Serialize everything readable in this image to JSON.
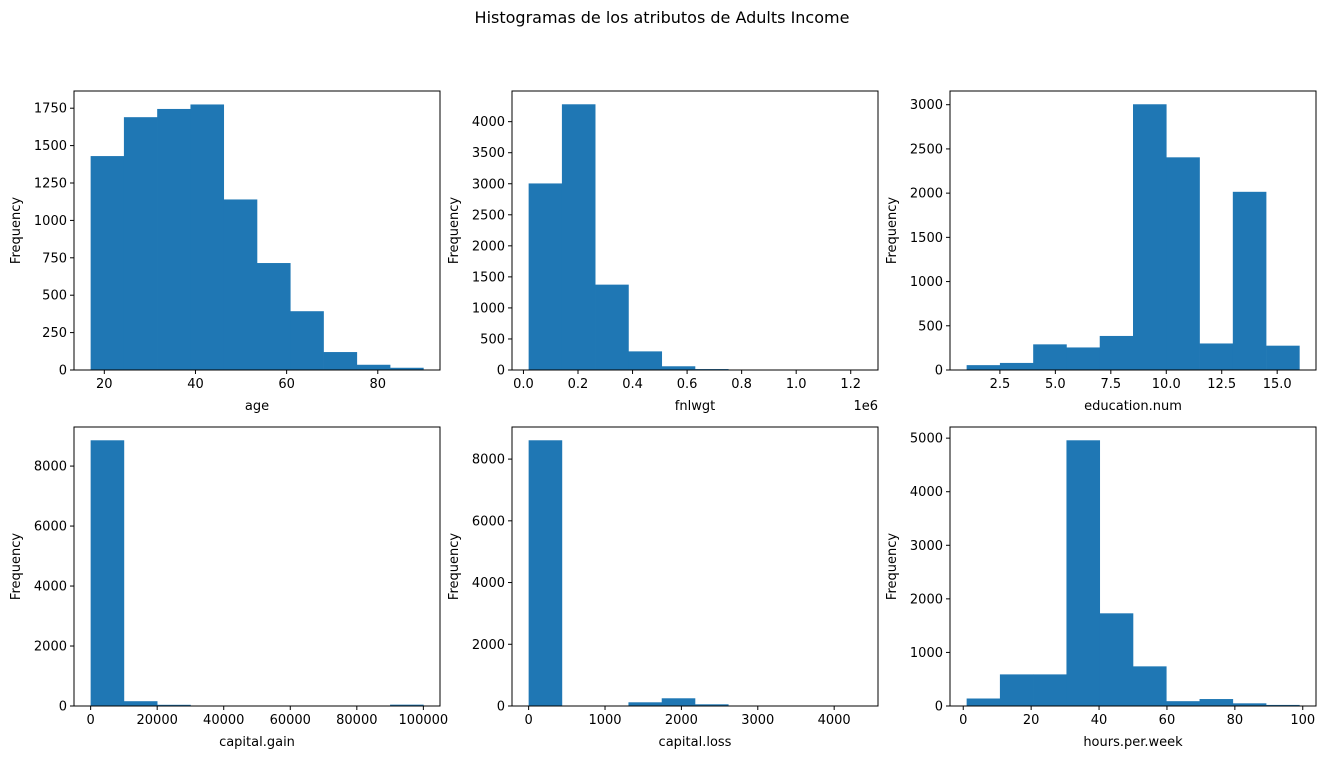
{
  "figure_title": "Histogramas de los atributos de Adults Income",
  "colors": {
    "bar": "#1f77b4",
    "axis": "#000000"
  },
  "chart_data": [
    {
      "type": "bar",
      "xlabel": "age",
      "ylabel": "Frequency",
      "bins": [
        [
          17,
          24.3,
          1430
        ],
        [
          24.3,
          31.6,
          1690
        ],
        [
          31.6,
          38.9,
          1745
        ],
        [
          38.9,
          46.2,
          1775
        ],
        [
          46.2,
          53.5,
          1140
        ],
        [
          53.5,
          60.8,
          715
        ],
        [
          60.8,
          68.1,
          393
        ],
        [
          68.1,
          75.4,
          120
        ],
        [
          75.4,
          82.7,
          35
        ],
        [
          82.7,
          90,
          15
        ]
      ],
      "xlim": [
        13.35,
        93.65
      ],
      "ylim": [
        0,
        1865
      ],
      "xticks": [
        20,
        40,
        60,
        80
      ],
      "xtick_labels": [
        "20",
        "40",
        "60",
        "80"
      ],
      "yticks": [
        0,
        250,
        500,
        750,
        1000,
        1250,
        1500,
        1750
      ],
      "ytick_labels": [
        "0",
        "250",
        "500",
        "750",
        "1000",
        "1250",
        "1500",
        "1750"
      ],
      "offset_label": ""
    },
    {
      "type": "bar",
      "xlabel": "fnlwgt",
      "ylabel": "Frequency",
      "bins": [
        [
          0.019,
          0.141,
          3005
        ],
        [
          0.141,
          0.263,
          4280
        ],
        [
          0.263,
          0.385,
          1375
        ],
        [
          0.385,
          0.507,
          300
        ],
        [
          0.507,
          0.629,
          60
        ],
        [
          0.629,
          0.751,
          15
        ],
        [
          0.751,
          0.873,
          8
        ],
        [
          0.873,
          0.995,
          3
        ],
        [
          0.995,
          1.117,
          2
        ],
        [
          1.117,
          1.239,
          1
        ]
      ],
      "xlim": [
        -0.042,
        1.3
      ],
      "ylim": [
        0,
        4494
      ],
      "xticks": [
        0,
        0.2,
        0.4,
        0.6,
        0.8,
        1.0,
        1.2
      ],
      "xtick_labels": [
        "0.0",
        "0.2",
        "0.4",
        "0.6",
        "0.8",
        "1.0",
        "1.2"
      ],
      "yticks": [
        0,
        500,
        1000,
        1500,
        2000,
        2500,
        3000,
        3500,
        4000
      ],
      "ytick_labels": [
        "0",
        "500",
        "1000",
        "1500",
        "2000",
        "2500",
        "3000",
        "3500",
        "4000"
      ],
      "offset_label": "1e6"
    },
    {
      "type": "bar",
      "xlabel": "education.num",
      "ylabel": "Frequency",
      "bins": [
        [
          1,
          2.5,
          55
        ],
        [
          2.5,
          4,
          80
        ],
        [
          4,
          5.5,
          290
        ],
        [
          5.5,
          7,
          255
        ],
        [
          7,
          8.5,
          385
        ],
        [
          8.5,
          10,
          3005
        ],
        [
          10,
          11.5,
          2405
        ],
        [
          11.5,
          13,
          300
        ],
        [
          13,
          14.5,
          2015
        ],
        [
          14.5,
          16,
          275
        ]
      ],
      "xlim": [
        0.25,
        16.75
      ],
      "ylim": [
        0,
        3155
      ],
      "xticks": [
        2.5,
        5,
        7.5,
        10,
        12.5,
        15
      ],
      "xtick_labels": [
        "2.5",
        "5.0",
        "7.5",
        "10.0",
        "12.5",
        "15.0"
      ],
      "yticks": [
        0,
        500,
        1000,
        1500,
        2000,
        2500,
        3000
      ],
      "ytick_labels": [
        "0",
        "500",
        "1000",
        "1500",
        "2000",
        "2500",
        "3000"
      ],
      "offset_label": ""
    },
    {
      "type": "bar",
      "xlabel": "capital.gain",
      "ylabel": "Frequency",
      "bins": [
        [
          0,
          9999.9,
          8860
        ],
        [
          9999.9,
          19999.8,
          160
        ],
        [
          19999.8,
          29999.7,
          40
        ],
        [
          29999.7,
          39999.6,
          0
        ],
        [
          39999.6,
          49999.5,
          0
        ],
        [
          49999.5,
          59999.4,
          0
        ],
        [
          59999.4,
          69999.3,
          0
        ],
        [
          69999.3,
          79999.2,
          0
        ],
        [
          79999.2,
          89999.1,
          0
        ],
        [
          89999.1,
          99999,
          45
        ]
      ],
      "xlim": [
        -5000,
        105000
      ],
      "ylim": [
        0,
        9303
      ],
      "xticks": [
        0,
        20000,
        40000,
        60000,
        80000,
        100000
      ],
      "xtick_labels": [
        "0",
        "20000",
        "40000",
        "60000",
        "80000",
        "100000"
      ],
      "yticks": [
        0,
        2000,
        4000,
        6000,
        8000
      ],
      "ytick_labels": [
        "0",
        "2000",
        "4000",
        "6000",
        "8000"
      ],
      "offset_label": ""
    },
    {
      "type": "bar",
      "xlabel": "capital.loss",
      "ylabel": "Frequency",
      "bins": [
        [
          0,
          435.6,
          8610
        ],
        [
          435.6,
          871.2,
          0
        ],
        [
          871.2,
          1306.8,
          5
        ],
        [
          1306.8,
          1742.4,
          120
        ],
        [
          1742.4,
          2178,
          250
        ],
        [
          2178,
          2613.6,
          55
        ],
        [
          2613.6,
          3049.2,
          5
        ],
        [
          3049.2,
          3484.8,
          0
        ],
        [
          3484.8,
          3920.4,
          0
        ],
        [
          3920.4,
          4356,
          2
        ]
      ],
      "xlim": [
        -217.8,
        4573.8
      ],
      "ylim": [
        0,
        9040
      ],
      "xticks": [
        0,
        1000,
        2000,
        3000,
        4000
      ],
      "xtick_labels": [
        "0",
        "1000",
        "2000",
        "3000",
        "4000"
      ],
      "yticks": [
        0,
        2000,
        4000,
        6000,
        8000
      ],
      "ytick_labels": [
        "0",
        "2000",
        "4000",
        "6000",
        "8000"
      ],
      "offset_label": ""
    },
    {
      "type": "bar",
      "xlabel": "hours.per.week",
      "ylabel": "Frequency",
      "bins": [
        [
          1,
          10.8,
          140
        ],
        [
          10.8,
          20.6,
          590
        ],
        [
          20.6,
          30.4,
          590
        ],
        [
          30.4,
          40.2,
          4960
        ],
        [
          40.2,
          50,
          1730
        ],
        [
          50,
          59.8,
          740
        ],
        [
          59.8,
          69.6,
          90
        ],
        [
          69.6,
          79.4,
          130
        ],
        [
          79.4,
          89.2,
          50
        ],
        [
          89.2,
          99,
          20
        ]
      ],
      "xlim": [
        -3.9,
        103.9
      ],
      "ylim": [
        0,
        5208
      ],
      "xticks": [
        0,
        20,
        40,
        60,
        80,
        100
      ],
      "xtick_labels": [
        "0",
        "20",
        "40",
        "60",
        "80",
        "100"
      ],
      "yticks": [
        0,
        1000,
        2000,
        3000,
        4000,
        5000
      ],
      "ytick_labels": [
        "0",
        "1000",
        "2000",
        "3000",
        "4000",
        "5000"
      ],
      "offset_label": ""
    }
  ]
}
